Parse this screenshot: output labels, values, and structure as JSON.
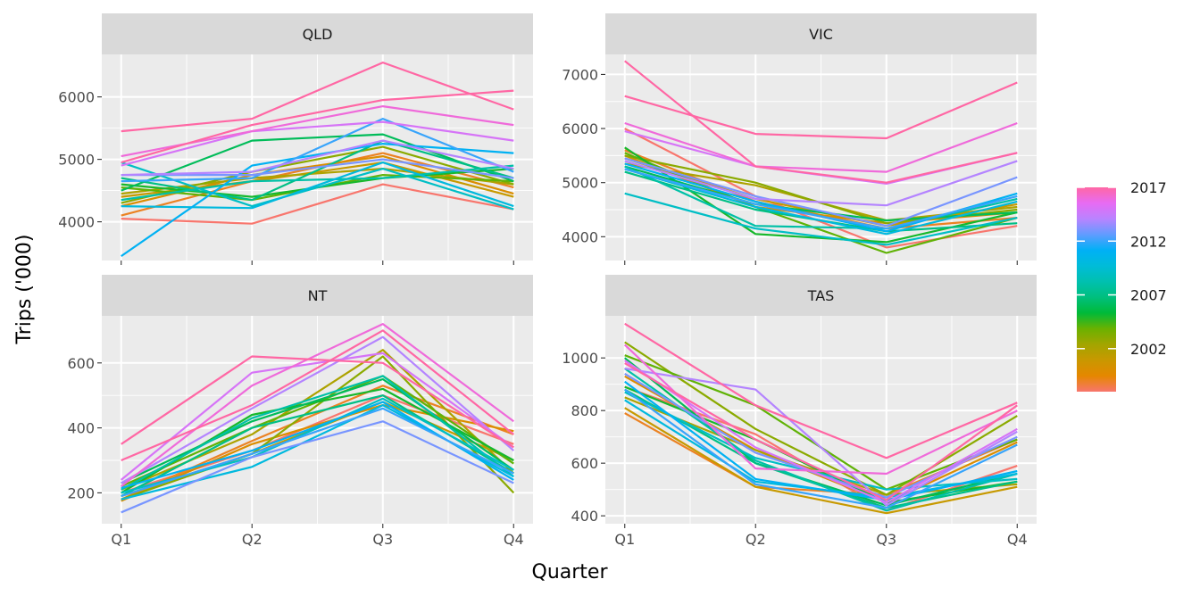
{
  "chart_data": {
    "type": "line",
    "xlabel": "Quarter",
    "ylabel": "Trips ('000)",
    "categories": [
      "Q1",
      "Q2",
      "Q3",
      "Q4"
    ],
    "grid": true,
    "legend_placement": "right",
    "legend": {
      "type": "colorbar",
      "range": [
        1998,
        2017
      ],
      "ticks": [
        2002,
        2007,
        2012,
        2017
      ],
      "colors": [
        "#F8766D",
        "#E58700",
        "#C99800",
        "#A3A500",
        "#6BB100",
        "#00BA38",
        "#00BF7D",
        "#00C0AF",
        "#00BCD8",
        "#00B0F6",
        "#619CFF",
        "#B983FF",
        "#E76BF3",
        "#FF67A4"
      ]
    },
    "panels": [
      {
        "name": "QLD",
        "ylim": [
          3380,
          6680
        ],
        "yticks": [
          4000,
          5000,
          6000
        ],
        "series": [
          {
            "year": 1998,
            "values": [
              4050,
              3970,
              4600,
              4200
            ]
          },
          {
            "year": 1999,
            "values": [
              4100,
              4650,
              5100,
              4550
            ]
          },
          {
            "year": 2000,
            "values": [
              4250,
              4750,
              5050,
              4450
            ]
          },
          {
            "year": 2001,
            "values": [
              4400,
              4650,
              4950,
              4400
            ]
          },
          {
            "year": 2002,
            "values": [
              4450,
              4700,
              4850,
              4600
            ]
          },
          {
            "year": 2003,
            "values": [
              4300,
              4800,
              5200,
              4600
            ]
          },
          {
            "year": 2004,
            "values": [
              4550,
              4350,
              4750,
              4650
            ]
          },
          {
            "year": 2005,
            "values": [
              4600,
              4400,
              4700,
              4850
            ]
          },
          {
            "year": 2006,
            "values": [
              4500,
              5300,
              5400,
              4650
            ]
          },
          {
            "year": 2007,
            "values": [
              4700,
              4350,
              5300,
              4700
            ]
          },
          {
            "year": 2008,
            "values": [
              4350,
              4650,
              4700,
              4900
            ]
          },
          {
            "year": 2009,
            "values": [
              4950,
              4250,
              4850,
              4200
            ]
          },
          {
            "year": 2010,
            "values": [
              4250,
              4220,
              4950,
              4250
            ]
          },
          {
            "year": 2011,
            "values": [
              3450,
              4900,
              5250,
              5100
            ]
          },
          {
            "year": 2012,
            "values": [
              4650,
              4700,
              5650,
              4800
            ]
          },
          {
            "year": 2013,
            "values": [
              4750,
              4750,
              5000,
              4700
            ]
          },
          {
            "year": 2014,
            "values": [
              4750,
              4800,
              5300,
              4850
            ]
          },
          {
            "year": 2015,
            "values": [
              4900,
              5450,
              5600,
              5300
            ]
          },
          {
            "year": 2016,
            "values": [
              5050,
              5450,
              5850,
              5550
            ]
          },
          {
            "year": 2017,
            "values": [
              4950,
              5550,
              5950,
              6100
            ]
          },
          {
            "year": 2017,
            "values": [
              5450,
              5650,
              6550,
              5800
            ]
          }
        ]
      },
      {
        "name": "VIC",
        "ylim": [
          3560,
          7370
        ],
        "yticks": [
          4000,
          5000,
          6000,
          7000
        ],
        "series": [
          {
            "year": 1998,
            "values": [
              6000,
              4750,
              3800,
              4200
            ]
          },
          {
            "year": 1999,
            "values": [
              5600,
              4650,
              4150,
              4350
            ]
          },
          {
            "year": 2000,
            "values": [
              5500,
              4550,
              4250,
              4450
            ]
          },
          {
            "year": 2001,
            "values": [
              5450,
              4700,
              4200,
              4600
            ]
          },
          {
            "year": 2002,
            "values": [
              5350,
              4950,
              4300,
              4550
            ]
          },
          {
            "year": 2003,
            "values": [
              5500,
              5000,
              4250,
              4500
            ]
          },
          {
            "year": 2004,
            "values": [
              5550,
              4550,
              3700,
              4350
            ]
          },
          {
            "year": 2005,
            "values": [
              5650,
              4050,
              3900,
              4450
            ]
          },
          {
            "year": 2006,
            "values": [
              5300,
              4600,
              4300,
              4450
            ]
          },
          {
            "year": 2007,
            "values": [
              5200,
              4500,
              4100,
              4250
            ]
          },
          {
            "year": 2008,
            "values": [
              5300,
              4200,
              4150,
              4700
            ]
          },
          {
            "year": 2009,
            "values": [
              4800,
              4150,
              3850,
              4350
            ]
          },
          {
            "year": 2010,
            "values": [
              5250,
              4550,
              4050,
              4650
            ]
          },
          {
            "year": 2011,
            "values": [
              5350,
              4650,
              4100,
              4800
            ]
          },
          {
            "year": 2012,
            "values": [
              5250,
              4600,
              4150,
              4750
            ]
          },
          {
            "year": 2013,
            "values": [
              5450,
              4750,
              4200,
              5100
            ]
          },
          {
            "year": 2014,
            "values": [
              5400,
              4700,
              4580,
              5400
            ]
          },
          {
            "year": 2015,
            "values": [
              5950,
              5300,
              4980,
              5550
            ]
          },
          {
            "year": 2016,
            "values": [
              6100,
              5300,
              5200,
              6100
            ]
          },
          {
            "year": 2017,
            "values": [
              6600,
              5900,
              5820,
              6850
            ]
          },
          {
            "year": 2017,
            "values": [
              7250,
              5300,
              5000,
              5550
            ]
          }
        ]
      },
      {
        "name": "NT",
        "ylim": [
          105,
          745
        ],
        "yticks": [
          200,
          400,
          600
        ],
        "series": [
          {
            "year": 1998,
            "values": [
              200,
              330,
              500,
              350
            ]
          },
          {
            "year": 1999,
            "values": [
              180,
              360,
              530,
              380
            ]
          },
          {
            "year": 2000,
            "values": [
              175,
              350,
              470,
              390
            ]
          },
          {
            "year": 2001,
            "values": [
              190,
              320,
              480,
              300
            ]
          },
          {
            "year": 2002,
            "values": [
              210,
              380,
              640,
              260
            ]
          },
          {
            "year": 2003,
            "values": [
              180,
              320,
              620,
              200
            ]
          },
          {
            "year": 2004,
            "values": [
              220,
              400,
              560,
              290
            ]
          },
          {
            "year": 2005,
            "values": [
              200,
              440,
              520,
              300
            ]
          },
          {
            "year": 2006,
            "values": [
              230,
              420,
              550,
              270
            ]
          },
          {
            "year": 2007,
            "values": [
              190,
              400,
              500,
              260
            ]
          },
          {
            "year": 2008,
            "values": [
              210,
              430,
              560,
              250
            ]
          },
          {
            "year": 2009,
            "values": [
              200,
              310,
              490,
              270
            ]
          },
          {
            "year": 2010,
            "values": [
              180,
              280,
              470,
              250
            ]
          },
          {
            "year": 2011,
            "values": [
              215,
              330,
              480,
              240
            ]
          },
          {
            "year": 2012,
            "values": [
              190,
              320,
              460,
              260
            ]
          },
          {
            "year": 2013,
            "values": [
              140,
              310,
              420,
              230
            ]
          },
          {
            "year": 2014,
            "values": [
              230,
              460,
              680,
              330
            ]
          },
          {
            "year": 2015,
            "values": [
              240,
              570,
              630,
              340
            ]
          },
          {
            "year": 2016,
            "values": [
              220,
              530,
              720,
              420
            ]
          },
          {
            "year": 2017,
            "values": [
              350,
              620,
              600,
              340
            ]
          },
          {
            "year": 2017,
            "values": [
              300,
              470,
              700,
              380
            ]
          }
        ]
      },
      {
        "name": "TAS",
        "ylim": [
          370,
          1160
        ],
        "yticks": [
          400,
          600,
          800,
          1000
        ],
        "series": [
          {
            "year": 1998,
            "values": [
              890,
              710,
              420,
              590
            ]
          },
          {
            "year": 1999,
            "values": [
              790,
              510,
              480,
              690
            ]
          },
          {
            "year": 2000,
            "values": [
              930,
              650,
              450,
              680
            ]
          },
          {
            "year": 2001,
            "values": [
              810,
              510,
              410,
              510
            ]
          },
          {
            "year": 2002,
            "values": [
              850,
              650,
              480,
              520
            ]
          },
          {
            "year": 2003,
            "values": [
              1060,
              730,
              480,
              780
            ]
          },
          {
            "year": 2004,
            "values": [
              1010,
              820,
              500,
              690
            ]
          },
          {
            "year": 2005,
            "values": [
              890,
              690,
              450,
              530
            ]
          },
          {
            "year": 2006,
            "values": [
              1000,
              600,
              440,
              560
            ]
          },
          {
            "year": 2007,
            "values": [
              880,
              600,
              430,
              530
            ]
          },
          {
            "year": 2008,
            "values": [
              960,
              610,
              420,
              560
            ]
          },
          {
            "year": 2009,
            "values": [
              870,
              620,
              500,
              540
            ]
          },
          {
            "year": 2010,
            "values": [
              840,
              530,
              470,
              560
            ]
          },
          {
            "year": 2011,
            "values": [
              910,
              540,
              460,
              570
            ]
          },
          {
            "year": 2012,
            "values": [
              880,
              520,
              430,
              670
            ]
          },
          {
            "year": 2013,
            "values": [
              940,
              640,
              470,
              700
            ]
          },
          {
            "year": 2014,
            "values": [
              960,
              880,
              440,
              720
            ]
          },
          {
            "year": 2015,
            "values": [
              990,
              660,
              450,
              730
            ]
          },
          {
            "year": 2016,
            "values": [
              1050,
              580,
              560,
              800
            ]
          },
          {
            "year": 2017,
            "values": [
              1130,
              820,
              620,
              830
            ]
          },
          {
            "year": 2017,
            "values": [
              980,
              690,
              460,
              820
            ]
          }
        ]
      }
    ]
  }
}
